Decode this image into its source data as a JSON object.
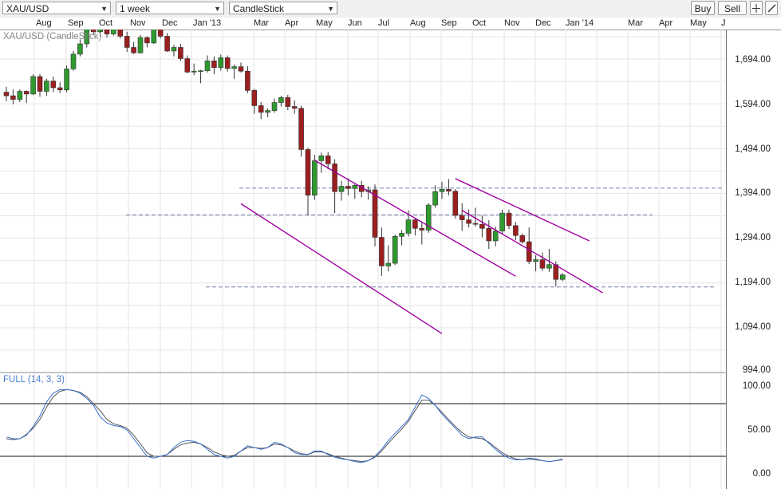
{
  "toolbar": {
    "symbol": "XAU/USD",
    "interval": "1 week",
    "chart_style": "CandleStick",
    "buy_label": "Buy",
    "sell_label": "Sell"
  },
  "chart_label": "XAU/USD (CandleStick)",
  "oscillator_label": "FULL (14, 3, 3)",
  "time_axis": [
    "Aug",
    "Sep",
    "Oct",
    "Nov",
    "Dec",
    "Jan '13",
    "Mar",
    "Apr",
    "May",
    "Jun",
    "Jul",
    "Aug",
    "Sep",
    "Oct",
    "Nov",
    "Dec",
    "Jan '14",
    "Mar",
    "Apr",
    "May",
    "J"
  ],
  "price_axis": [
    "1,694.00",
    "1,594.00",
    "1,494.00",
    "1,394.00",
    "1,294.00",
    "1,194.00",
    "1,094.00",
    "994.00"
  ],
  "oscillator_axis": [
    "100.00",
    "50.00",
    "0.00"
  ],
  "colors": {
    "up": "#2e9a2e",
    "down": "#9b1f1f",
    "channel": "#a000a0",
    "dashed": "#6d7ea8",
    "stoch_k": "#3a6fd0",
    "stoch_d": "#555555"
  },
  "chart_data": {
    "type": "candlestick",
    "symbol": "XAU/USD",
    "interval": "1 week",
    "ylim": [
      994,
      1760
    ],
    "candles": [
      [
        1620,
        1632,
        1600,
        1612
      ],
      [
        1612,
        1626,
        1593,
        1604
      ],
      [
        1604,
        1626,
        1598,
        1622
      ],
      [
        1622,
        1624,
        1596,
        1616
      ],
      [
        1616,
        1660,
        1614,
        1655
      ],
      [
        1655,
        1660,
        1610,
        1622
      ],
      [
        1622,
        1650,
        1612,
        1645
      ],
      [
        1645,
        1655,
        1620,
        1630
      ],
      [
        1630,
        1642,
        1618,
        1625
      ],
      [
        1625,
        1680,
        1620,
        1672
      ],
      [
        1672,
        1712,
        1668,
        1705
      ],
      [
        1705,
        1738,
        1700,
        1728
      ],
      [
        1728,
        1782,
        1720,
        1772
      ],
      [
        1772,
        1792,
        1748,
        1755
      ],
      [
        1755,
        1785,
        1745,
        1778
      ],
      [
        1778,
        1790,
        1742,
        1750
      ],
      [
        1750,
        1795,
        1746,
        1788
      ],
      [
        1788,
        1796,
        1740,
        1745
      ],
      [
        1745,
        1755,
        1710,
        1720
      ],
      [
        1720,
        1732,
        1705,
        1708
      ],
      [
        1708,
        1748,
        1706,
        1742
      ],
      [
        1742,
        1745,
        1720,
        1730
      ],
      [
        1730,
        1782,
        1728,
        1775
      ],
      [
        1775,
        1780,
        1740,
        1745
      ],
      [
        1745,
        1752,
        1710,
        1712
      ],
      [
        1712,
        1726,
        1700,
        1720
      ],
      [
        1720,
        1728,
        1690,
        1695
      ],
      [
        1695,
        1702,
        1662,
        1665
      ],
      [
        1665,
        1684,
        1658,
        1667
      ],
      [
        1667,
        1670,
        1640,
        1668
      ],
      [
        1668,
        1702,
        1664,
        1690
      ],
      [
        1690,
        1700,
        1660,
        1675
      ],
      [
        1675,
        1704,
        1668,
        1697
      ],
      [
        1697,
        1702,
        1666,
        1673
      ],
      [
        1673,
        1682,
        1650,
        1677
      ],
      [
        1677,
        1686,
        1664,
        1667
      ],
      [
        1667,
        1678,
        1618,
        1624
      ],
      [
        1624,
        1628,
        1572,
        1590
      ],
      [
        1590,
        1598,
        1560,
        1575
      ],
      [
        1575,
        1584,
        1564,
        1579
      ],
      [
        1579,
        1606,
        1574,
        1597
      ],
      [
        1597,
        1612,
        1588,
        1608
      ],
      [
        1608,
        1614,
        1580,
        1588
      ],
      [
        1588,
        1602,
        1572,
        1584
      ],
      [
        1584,
        1590,
        1476,
        1492
      ],
      [
        1492,
        1496,
        1345,
        1390
      ],
      [
        1390,
        1480,
        1380,
        1467
      ],
      [
        1467,
        1485,
        1440,
        1478
      ],
      [
        1478,
        1486,
        1448,
        1460
      ],
      [
        1460,
        1470,
        1350,
        1398
      ],
      [
        1398,
        1422,
        1378,
        1410
      ],
      [
        1410,
        1428,
        1390,
        1405
      ],
      [
        1405,
        1414,
        1382,
        1412
      ],
      [
        1412,
        1422,
        1385,
        1398
      ],
      [
        1398,
        1410,
        1380,
        1402
      ],
      [
        1402,
        1414,
        1276,
        1296
      ],
      [
        1296,
        1318,
        1210,
        1232
      ],
      [
        1232,
        1278,
        1220,
        1238
      ],
      [
        1238,
        1302,
        1234,
        1298
      ],
      [
        1298,
        1312,
        1278,
        1305
      ],
      [
        1305,
        1356,
        1298,
        1335
      ],
      [
        1335,
        1338,
        1300,
        1316
      ],
      [
        1316,
        1328,
        1280,
        1312
      ],
      [
        1312,
        1372,
        1306,
        1368
      ],
      [
        1368,
        1412,
        1362,
        1398
      ],
      [
        1398,
        1420,
        1382,
        1403
      ],
      [
        1403,
        1426,
        1390,
        1399
      ],
      [
        1399,
        1404,
        1338,
        1345
      ],
      [
        1345,
        1372,
        1310,
        1335
      ],
      [
        1335,
        1358,
        1318,
        1327
      ],
      [
        1327,
        1362,
        1320,
        1325
      ],
      [
        1325,
        1345,
        1296,
        1316
      ],
      [
        1316,
        1334,
        1270,
        1288
      ],
      [
        1288,
        1320,
        1276,
        1310
      ],
      [
        1310,
        1358,
        1304,
        1350
      ],
      [
        1350,
        1358,
        1314,
        1322
      ],
      [
        1322,
        1330,
        1290,
        1300
      ],
      [
        1300,
        1305,
        1282,
        1286
      ],
      [
        1286,
        1318,
        1236,
        1242
      ],
      [
        1242,
        1256,
        1220,
        1246
      ],
      [
        1246,
        1262,
        1221,
        1227
      ],
      [
        1227,
        1270,
        1219,
        1235
      ],
      [
        1235,
        1242,
        1186,
        1202
      ],
      [
        1202,
        1216,
        1198,
        1212
      ]
    ],
    "channel_lines": [
      {
        "from": [
          46,
          1468
        ],
        "to": [
          76,
          1209
        ]
      },
      {
        "from": [
          35,
          1371
        ],
        "to": [
          65,
          1081
        ]
      },
      {
        "from": [
          67,
          1427
        ],
        "to": [
          87,
          1288
        ]
      },
      {
        "from": [
          68,
          1356
        ],
        "to": [
          89,
          1172
        ]
      }
    ],
    "horizontal_levels": [
      1406,
      1346,
      1185
    ],
    "oscillator": {
      "name": "FULL (14, 3, 3)",
      "ylim": [
        0,
        100
      ],
      "levels": [
        80,
        20
      ],
      "k": [
        42,
        40,
        40,
        44,
        54,
        66,
        82,
        92,
        96,
        96,
        95,
        92,
        86,
        78,
        65,
        58,
        55,
        54,
        50,
        40,
        30,
        20,
        18,
        20,
        22,
        30,
        36,
        38,
        37,
        34,
        28,
        22,
        20,
        18,
        20,
        26,
        32,
        30,
        28,
        30,
        36,
        34,
        30,
        24,
        22,
        22,
        26,
        26,
        22,
        19,
        17,
        16,
        14,
        13,
        15,
        20,
        28,
        38,
        46,
        54,
        62,
        76,
        90,
        86,
        78,
        68,
        60,
        52,
        44,
        40,
        42,
        42,
        35,
        28,
        22,
        18,
        16,
        16,
        18,
        17,
        15,
        14,
        15,
        17
      ],
      "d": [
        40,
        39,
        40,
        45,
        52,
        62,
        76,
        88,
        94,
        96,
        95,
        93,
        88,
        80,
        72,
        62,
        57,
        55,
        52,
        44,
        34,
        24,
        20,
        20,
        22,
        28,
        33,
        35,
        36,
        34,
        30,
        25,
        22,
        20,
        21,
        26,
        30,
        30,
        29,
        30,
        34,
        33,
        30,
        26,
        23,
        22,
        25,
        25,
        23,
        20,
        18,
        16,
        15,
        14,
        15,
        19,
        26,
        35,
        43,
        51,
        60,
        72,
        84,
        84,
        78,
        70,
        62,
        54,
        47,
        42,
        41,
        40,
        36,
        30,
        24,
        20,
        17,
        16,
        17,
        16,
        15,
        14,
        15,
        16
      ]
    }
  }
}
